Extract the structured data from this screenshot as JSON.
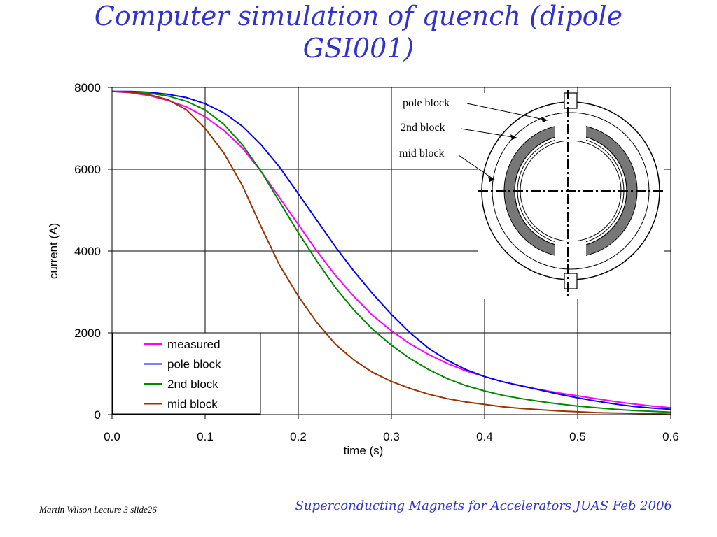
{
  "slide": {
    "title_line1": "Computer simulation of quench (dipole",
    "title_line2": "GSI001)",
    "footer_left": "Martin Wilson Lecture 3 slide26",
    "footer_right": "Superconducting Magnets for Accelerators JUAS Feb 2006"
  },
  "chart_data": {
    "type": "line",
    "title": "",
    "xlabel": "time (s)",
    "ylabel": "current (A)",
    "xlim": [
      0,
      0.6
    ],
    "ylim": [
      0,
      8000
    ],
    "xticks": [
      "0.0",
      "0.1",
      "0.2",
      "0.3",
      "0.4",
      "0.5",
      "0.6"
    ],
    "yticks": [
      "0",
      "2000",
      "4000",
      "6000",
      "8000"
    ],
    "grid": true,
    "legend_position": "bottom-left",
    "series": [
      {
        "name": "measured",
        "color": "#ff00ff",
        "x": [
          0,
          0.02,
          0.04,
          0.06,
          0.08,
          0.1,
          0.12,
          0.14,
          0.16,
          0.18,
          0.2,
          0.22,
          0.24,
          0.26,
          0.28,
          0.3,
          0.32,
          0.34,
          0.36,
          0.38,
          0.4,
          0.42,
          0.44,
          0.46,
          0.48,
          0.5,
          0.52,
          0.54,
          0.56,
          0.58,
          0.6
        ],
        "y": [
          7900,
          7870,
          7800,
          7680,
          7520,
          7280,
          6950,
          6520,
          5950,
          5300,
          4650,
          4000,
          3400,
          2880,
          2420,
          2050,
          1730,
          1470,
          1250,
          1070,
          930,
          800,
          700,
          610,
          530,
          460,
          390,
          320,
          260,
          210,
          170
        ]
      },
      {
        "name": "pole block",
        "color": "#0000ee",
        "x": [
          0,
          0.02,
          0.04,
          0.06,
          0.08,
          0.1,
          0.12,
          0.14,
          0.16,
          0.18,
          0.2,
          0.22,
          0.24,
          0.26,
          0.28,
          0.3,
          0.32,
          0.34,
          0.36,
          0.38,
          0.4,
          0.42,
          0.44,
          0.46,
          0.48,
          0.5,
          0.52,
          0.54,
          0.56,
          0.58,
          0.6
        ],
        "y": [
          7900,
          7900,
          7880,
          7830,
          7750,
          7600,
          7380,
          7050,
          6600,
          6050,
          5400,
          4750,
          4100,
          3500,
          2950,
          2450,
          2000,
          1620,
          1330,
          1100,
          930,
          800,
          700,
          600,
          500,
          410,
          330,
          260,
          200,
          160,
          130
        ]
      },
      {
        "name": "2nd block",
        "color": "#008800",
        "x": [
          0,
          0.02,
          0.04,
          0.06,
          0.08,
          0.1,
          0.12,
          0.14,
          0.16,
          0.18,
          0.2,
          0.22,
          0.24,
          0.26,
          0.28,
          0.3,
          0.32,
          0.34,
          0.36,
          0.38,
          0.4,
          0.42,
          0.44,
          0.46,
          0.48,
          0.5,
          0.52,
          0.54,
          0.56,
          0.58,
          0.6
        ],
        "y": [
          7900,
          7890,
          7860,
          7790,
          7660,
          7450,
          7100,
          6600,
          5950,
          5200,
          4450,
          3750,
          3100,
          2550,
          2080,
          1700,
          1370,
          1100,
          880,
          710,
          580,
          470,
          390,
          320,
          260,
          210,
          170,
          130,
          100,
          80,
          60
        ]
      },
      {
        "name": "mid block",
        "color": "#993300",
        "x": [
          0,
          0.02,
          0.04,
          0.06,
          0.08,
          0.1,
          0.12,
          0.14,
          0.16,
          0.18,
          0.2,
          0.22,
          0.24,
          0.26,
          0.28,
          0.3,
          0.32,
          0.34,
          0.36,
          0.38,
          0.4,
          0.42,
          0.44,
          0.46,
          0.48,
          0.5,
          0.52,
          0.54,
          0.56,
          0.58,
          0.6
        ],
        "y": [
          7900,
          7880,
          7820,
          7700,
          7450,
          7000,
          6400,
          5600,
          4600,
          3650,
          2900,
          2250,
          1720,
          1330,
          1030,
          810,
          640,
          500,
          390,
          310,
          250,
          190,
          150,
          120,
          90,
          70,
          50,
          40,
          30,
          20,
          10
        ]
      }
    ],
    "inset": {
      "labels": [
        "pole block",
        "2nd block",
        "mid block"
      ]
    }
  }
}
